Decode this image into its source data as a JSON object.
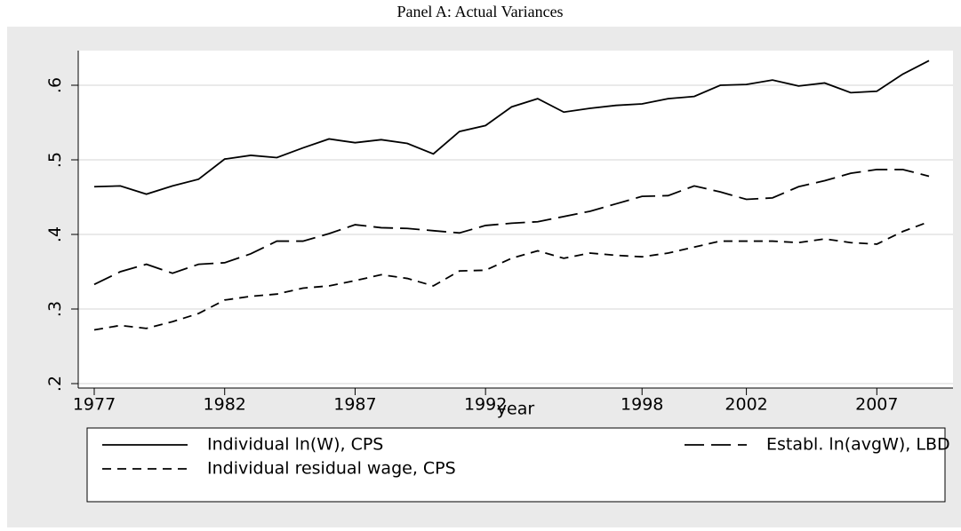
{
  "chart_data": {
    "type": "line",
    "title": "Panel A: Actual Variances",
    "xlabel": "year",
    "x": [
      1977,
      1978,
      1979,
      1980,
      1981,
      1982,
      1983,
      1984,
      1985,
      1986,
      1987,
      1988,
      1989,
      1990,
      1991,
      1992,
      1993,
      1994,
      1995,
      1996,
      1997,
      1998,
      1999,
      2000,
      2001,
      2002,
      2003,
      2004,
      2005,
      2006,
      2007,
      2008,
      2009
    ],
    "series": [
      {
        "name": "Individual ln(W), CPS",
        "color": "#000000",
        "line_style": "solid",
        "values": [
          0.464,
          0.465,
          0.454,
          0.465,
          0.474,
          0.501,
          0.506,
          0.503,
          0.516,
          0.528,
          0.523,
          0.527,
          0.522,
          0.508,
          0.538,
          0.546,
          0.571,
          0.582,
          0.564,
          0.569,
          0.573,
          0.575,
          0.582,
          0.585,
          0.6,
          0.601,
          0.607,
          0.599,
          0.603,
          0.59,
          0.592,
          0.615,
          0.633
        ]
      },
      {
        "name": "Establ. ln(avgW), LBD",
        "color": "#000000",
        "line_style": "longdash",
        "values": [
          0.333,
          0.35,
          0.36,
          0.348,
          0.36,
          0.362,
          0.374,
          0.391,
          0.391,
          0.401,
          0.413,
          0.409,
          0.408,
          0.405,
          0.402,
          0.412,
          0.415,
          0.417,
          0.424,
          0.431,
          0.441,
          0.451,
          0.452,
          0.465,
          0.457,
          0.447,
          0.449,
          0.464,
          0.472,
          0.482,
          0.487,
          0.487,
          0.478
        ]
      },
      {
        "name": "Individual residual wage, CPS",
        "color": "#000000",
        "line_style": "dash",
        "values": [
          0.272,
          0.278,
          0.274,
          0.283,
          0.294,
          0.312,
          0.317,
          0.32,
          0.328,
          0.331,
          0.338,
          0.346,
          0.341,
          0.331,
          0.351,
          0.352,
          0.368,
          0.378,
          0.368,
          0.375,
          0.372,
          0.37,
          0.375,
          0.383,
          0.391,
          0.391,
          0.391,
          0.389,
          0.394,
          0.389,
          0.387,
          0.404,
          0.417
        ]
      }
    ],
    "xlim": [
      1977,
      2009
    ],
    "xticks": [
      1977,
      1982,
      1987,
      1992,
      1998,
      2002,
      2007
    ],
    "ylim": [
      0.2,
      0.6
    ],
    "yticks": [
      {
        "value": 0.2,
        "label": ".2"
      },
      {
        "value": 0.3,
        "label": ".3"
      },
      {
        "value": 0.4,
        "label": ".4"
      },
      {
        "value": 0.5,
        "label": ".5"
      },
      {
        "value": 0.6,
        "label": ".6"
      }
    ],
    "grid": true,
    "legend": "bottom"
  }
}
